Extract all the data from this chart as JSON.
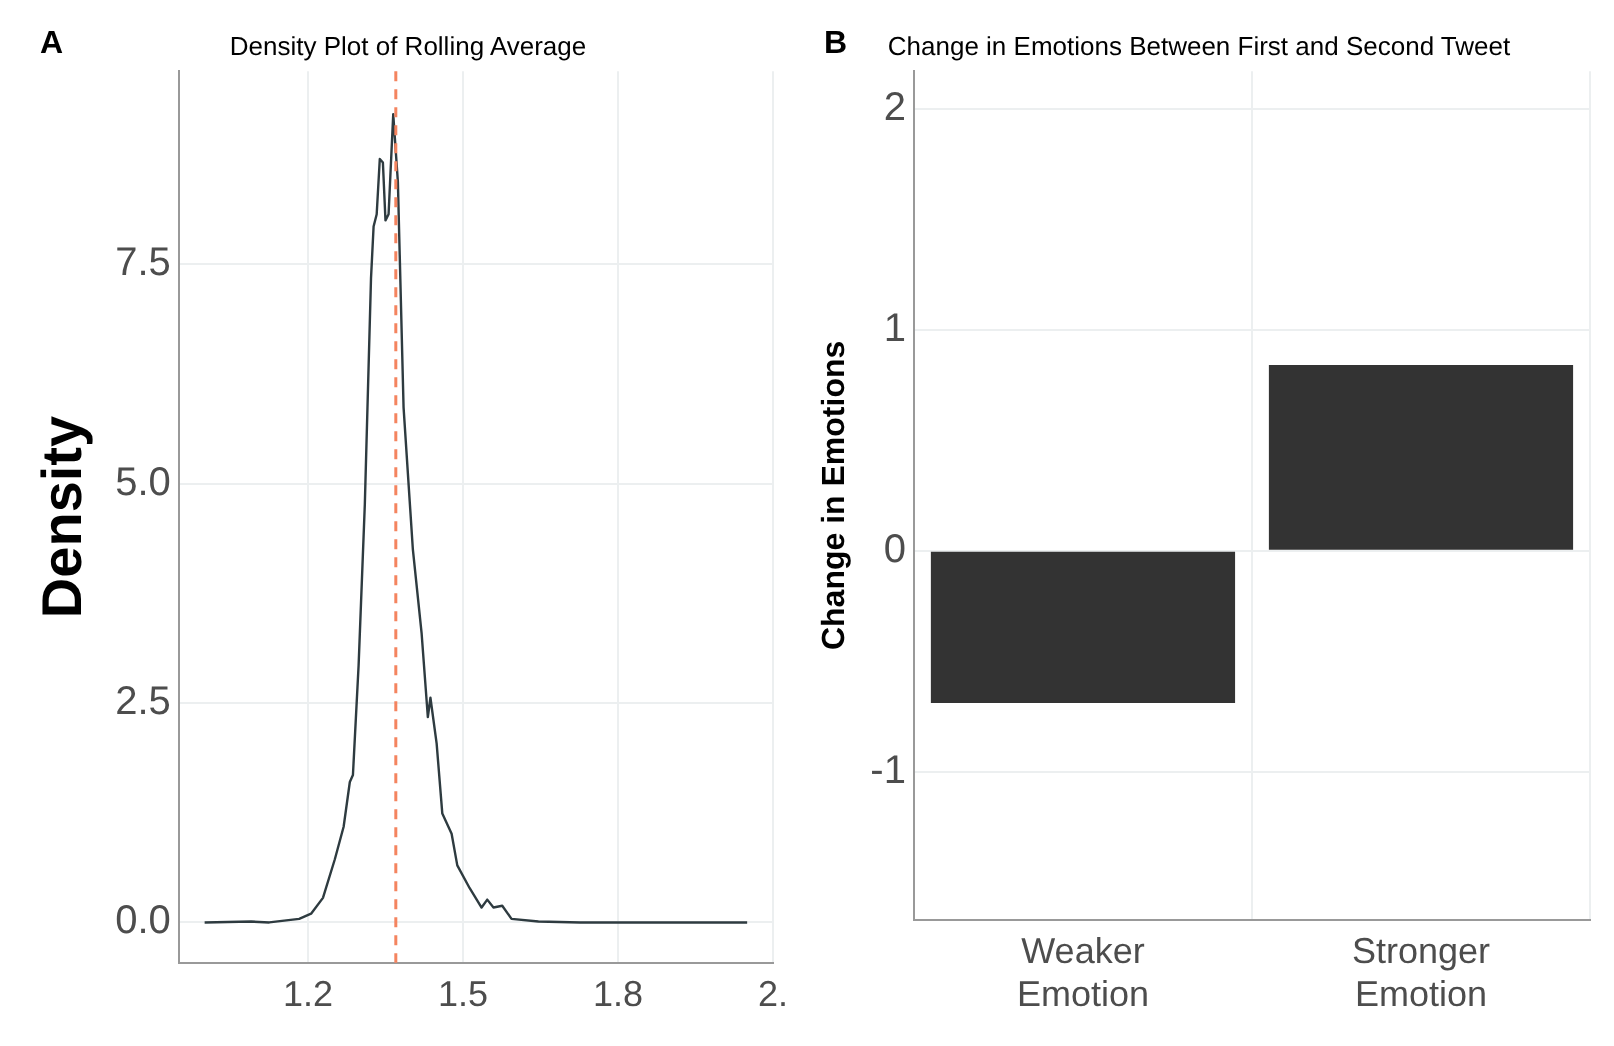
{
  "chart_data": [
    {
      "type": "line",
      "title": "Density Plot of Rolling Average",
      "ylabel": "Density",
      "annotations": [
        "A"
      ],
      "x": [
        1.0,
        1.09,
        1.125,
        1.183,
        1.206,
        1.229,
        1.252,
        1.269,
        1.281,
        1.287,
        1.298,
        1.31,
        1.322,
        1.327,
        1.333,
        1.339,
        1.345,
        1.35,
        1.356,
        1.365,
        1.374,
        1.385,
        1.403,
        1.42,
        1.432,
        1.437,
        1.449,
        1.46,
        1.478,
        1.489,
        1.513,
        1.536,
        1.547,
        1.559,
        1.576,
        1.594,
        1.646,
        1.727,
        2.05
      ],
      "series": [
        {
          "color": "#2e3b40",
          "values": [
            0,
            0.01,
            0,
            0.04,
            0.1,
            0.28,
            0.72,
            1.09,
            1.6,
            1.68,
            2.93,
            4.76,
            7.34,
            7.93,
            8.07,
            8.7,
            8.66,
            8.0,
            8.07,
            9.21,
            8.44,
            5.87,
            4.25,
            3.29,
            2.34,
            2.56,
            2.04,
            1.24,
            1.01,
            0.65,
            0.39,
            0.17,
            0.26,
            0.17,
            0.19,
            0.04,
            0.01,
            0,
            0
          ]
        }
      ],
      "xlim": [
        0.95,
        2.1
      ],
      "xticks": [
        1.2,
        1.5,
        1.8,
        {
          "value": 2.1,
          "label": "2."
        }
      ],
      "ylim": [
        -0.46,
        9.7
      ],
      "yticks": [
        {
          "value": 0,
          "label": "0.0"
        },
        2.5,
        {
          "value": 5,
          "label": "5.0"
        },
        7.5
      ],
      "ref_lines": [
        {
          "axis": "x",
          "value": 1.37,
          "color": "#f4845f",
          "line_style": "dashed"
        }
      ],
      "grid": true,
      "legend": false,
      "marker": "none"
    },
    {
      "type": "bar",
      "title": "Change in Emotions Between First and Second Tweet",
      "ylabel": "Change in Emotions",
      "annotations": [
        "B"
      ],
      "categories": [
        "Weaker Emotion",
        "Stronger Emotion"
      ],
      "values": [
        -0.69,
        0.84
      ],
      "color": "#333333",
      "ylim": [
        -1.67,
        2.17
      ],
      "yticks": [
        -1,
        0,
        1,
        2
      ],
      "grid": true,
      "legend": false
    }
  ]
}
